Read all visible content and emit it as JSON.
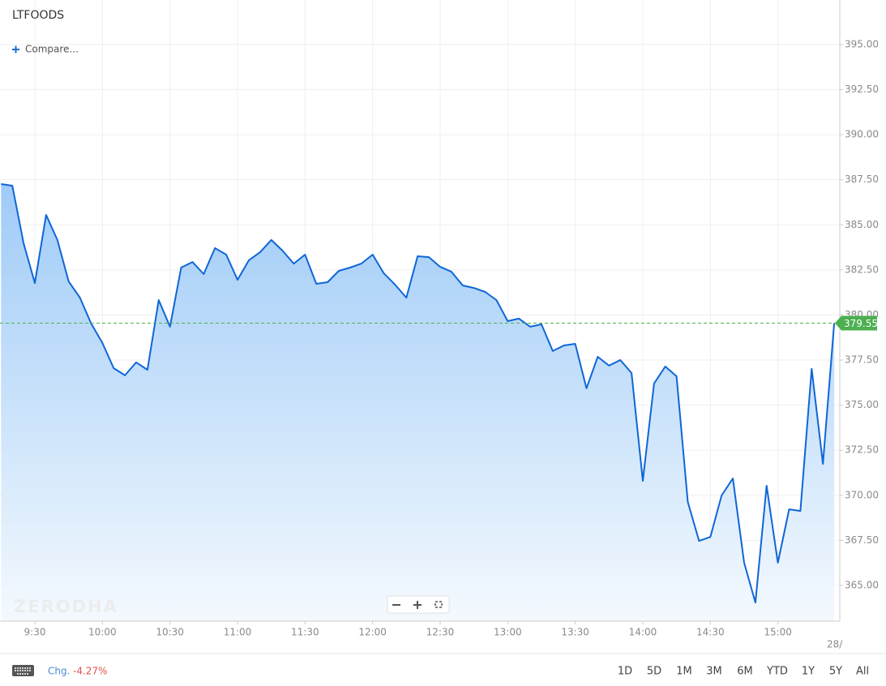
{
  "chart_data": {
    "type": "line",
    "title": "LTFOODS",
    "x": [
      "9:15",
      "9:20",
      "9:25",
      "9:30",
      "9:35",
      "9:40",
      "9:45",
      "9:50",
      "9:55",
      "10:00",
      "10:05",
      "10:10",
      "10:15",
      "10:20",
      "10:25",
      "10:30",
      "10:35",
      "10:40",
      "10:45",
      "10:50",
      "10:55",
      "11:00",
      "11:05",
      "11:10",
      "11:15",
      "11:20",
      "11:25",
      "11:30",
      "11:35",
      "11:40",
      "11:45",
      "11:50",
      "11:55",
      "12:00",
      "12:05",
      "12:10",
      "12:15",
      "12:20",
      "12:25",
      "12:30",
      "12:35",
      "12:40",
      "12:45",
      "12:50",
      "12:55",
      "13:00",
      "13:05",
      "13:10",
      "13:15",
      "13:20",
      "13:25",
      "13:30",
      "13:35",
      "13:40",
      "13:45",
      "13:50",
      "13:55",
      "14:00",
      "14:05",
      "14:10",
      "14:15",
      "14:20",
      "14:25",
      "14:30",
      "14:35",
      "14:40",
      "14:45",
      "14:50",
      "14:55",
      "15:00",
      "15:05",
      "15:10",
      "15:15",
      "15:20",
      "15:25"
    ],
    "values": [
      387.26,
      387.17,
      383.98,
      381.77,
      385.55,
      384.16,
      381.86,
      380.96,
      379.53,
      378.45,
      377.05,
      376.65,
      377.37,
      376.96,
      380.83,
      379.35,
      382.63,
      382.94,
      382.27,
      383.71,
      383.35,
      381.95,
      383.03,
      383.48,
      384.16,
      383.57,
      382.85,
      383.35,
      381.73,
      381.82,
      382.45,
      382.63,
      382.85,
      383.35,
      382.31,
      381.68,
      380.96,
      383.26,
      383.21,
      382.67,
      382.4,
      381.64,
      381.5,
      381.28,
      380.83,
      379.66,
      379.8,
      379.35,
      379.48,
      378.0,
      378.31,
      378.4,
      375.93,
      377.68,
      377.19,
      377.5,
      376.78,
      370.8,
      376.2,
      377.14,
      376.6,
      369.63,
      367.47,
      367.69,
      369.99,
      370.93,
      366.26,
      364.05,
      370.53,
      366.26,
      369.22,
      369.13,
      377.01,
      371.74,
      379.55
    ],
    "color": "#0f66d6",
    "last_color": "#4caf50",
    "ylim": [
      363.02,
      397.47
    ],
    "yticks": [
      {
        "value": 365,
        "label": "365.00"
      },
      {
        "value": 367.5,
        "label": "367.50"
      },
      {
        "value": 370,
        "label": "370.00"
      },
      {
        "value": 372.5,
        "label": "372.50"
      },
      {
        "value": 375,
        "label": "375.00"
      },
      {
        "value": 377.5,
        "label": "377.50"
      },
      {
        "value": 380,
        "label": "380.00"
      },
      {
        "value": 382.5,
        "label": "382.50"
      },
      {
        "value": 385,
        "label": "385.00"
      },
      {
        "value": 387.5,
        "label": "387.50"
      },
      {
        "value": 390,
        "label": "390.00"
      },
      {
        "value": 392.5,
        "label": "392.50"
      },
      {
        "value": 395,
        "label": "395.00"
      }
    ],
    "xticks": [
      "9:30",
      "10:00",
      "10:30",
      "11:00",
      "11:30",
      "12:00",
      "12:30",
      "13:00",
      "13:30",
      "14:00",
      "14:30",
      "15:00"
    ],
    "grid": true
  },
  "toolbar": {
    "compare": "Compare...",
    "watermark": "ZERODHA",
    "date_stub": "28/",
    "change_label": "Chg.",
    "change_value": "-4.27%",
    "ranges": [
      "1D",
      "5D",
      "1M",
      "3M",
      "6M",
      "YTD",
      "1Y",
      "5Y",
      "All"
    ]
  }
}
